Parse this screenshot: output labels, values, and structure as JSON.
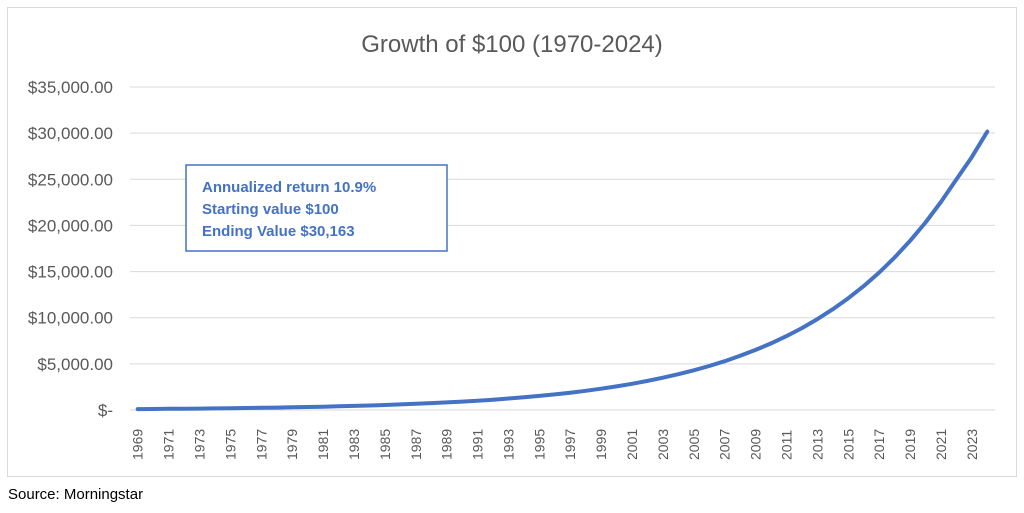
{
  "chart_data": {
    "type": "line",
    "title": "Growth of $100 (1970-2024)",
    "xlabel": "",
    "ylabel": "",
    "ylim": [
      0,
      35000
    ],
    "y_ticks": [
      0,
      5000,
      10000,
      15000,
      20000,
      25000,
      30000,
      35000
    ],
    "y_tick_labels": [
      "$-",
      "$5,000.00",
      "$10,000.00",
      "$15,000.00",
      "$20,000.00",
      "$25,000.00",
      "$30,000.00",
      "$35,000.00"
    ],
    "x_tick_labels": [
      "1969",
      "1971",
      "1973",
      "1975",
      "1977",
      "1979",
      "1981",
      "1983",
      "1985",
      "1987",
      "1989",
      "1991",
      "1993",
      "1995",
      "1997",
      "1999",
      "2001",
      "2003",
      "2005",
      "2007",
      "2009",
      "2011",
      "2013",
      "2015",
      "2017",
      "2019",
      "2021",
      "2023"
    ],
    "grid": true,
    "line_color": "#4472c4",
    "series": [
      {
        "x": [
          1969,
          1970,
          1971,
          1972,
          1973,
          1974,
          1975,
          1976,
          1977,
          1978,
          1979,
          1980,
          1981,
          1982,
          1983,
          1984,
          1985,
          1986,
          1987,
          1988,
          1989,
          1990,
          1991,
          1992,
          1993,
          1994,
          1995,
          1996,
          1997,
          1998,
          1999,
          2000,
          2001,
          2002,
          2003,
          2004,
          2005,
          2006,
          2007,
          2008,
          2009,
          2010,
          2011,
          2012,
          2013,
          2014,
          2015,
          2016,
          2017,
          2018,
          2019,
          2020,
          2021,
          2022,
          2023,
          2024
        ],
        "values": [
          100,
          110,
          125,
          140,
          155,
          170,
          190,
          215,
          240,
          265,
          295,
          325,
          360,
          400,
          445,
          490,
          545,
          605,
          670,
          745,
          825,
          915,
          1010,
          1120,
          1245,
          1380,
          1530,
          1695,
          1880,
          2085,
          2310,
          2560,
          2840,
          3150,
          3495,
          3875,
          4300,
          4770,
          5290,
          5870,
          6510,
          7220,
          8010,
          8880,
          9850,
          10920,
          12110,
          13430,
          14900,
          16520,
          18320,
          20320,
          22540,
          24990,
          27400,
          30163
        ]
      }
    ],
    "annotation": {
      "lines": [
        "Annualized return 10.9%",
        "Starting value $100",
        "Ending Value $30,163"
      ],
      "color": "#4472c4"
    }
  },
  "source": "Source: Morningstar"
}
